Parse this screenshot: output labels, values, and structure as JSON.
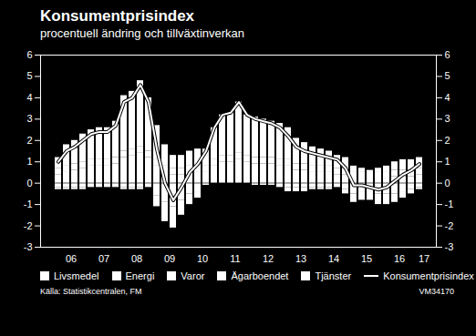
{
  "chart_data": {
    "type": "bar",
    "title": "Konsumentprisindex",
    "subtitle": "procentuell ändring och tillväxtinverkan",
    "source": "Källa: Statistikcentralen, FM",
    "annotations": [
      "VM34170"
    ],
    "stacked": true,
    "legend": "bottom",
    "grid": false,
    "ylim": [
      -3,
      6
    ],
    "yticks": [
      -3,
      -2,
      -1,
      0,
      1,
      2,
      3,
      4,
      5,
      6
    ],
    "categories": [
      null,
      "06",
      null,
      null,
      null,
      "07",
      null,
      null,
      null,
      "08",
      null,
      null,
      null,
      "09",
      null,
      null,
      null,
      "10",
      null,
      null,
      null,
      "11",
      null,
      null,
      null,
      "12",
      null,
      null,
      null,
      "13",
      null,
      null,
      null,
      "14",
      null,
      null,
      null,
      "15",
      null,
      null,
      null,
      "16",
      null,
      null,
      "17"
    ],
    "series": [
      {
        "name": "Livsmedel",
        "type": "bar",
        "color": "#ffffff",
        "values": [
          0.4,
          0.5,
          0.6,
          0.7,
          0.8,
          0.8,
          0.8,
          0.9,
          1.2,
          1.3,
          1.4,
          1.2,
          0.8,
          0.5,
          0.4,
          0.4,
          0.5,
          0.5,
          0.5,
          0.8,
          1.0,
          1.0,
          1.1,
          1.0,
          0.9,
          0.9,
          0.9,
          0.8,
          0.8,
          0.6,
          0.6,
          0.5,
          0.5,
          0.5,
          0.4,
          0.4,
          0.2,
          0.2,
          0.2,
          0.2,
          0.2,
          0.3,
          0.3,
          0.3,
          0.4
        ]
      },
      {
        "name": "Energi",
        "type": "bar",
        "color": "#ffffff",
        "values": [
          -0.2,
          -0.2,
          -0.2,
          -0.2,
          -0.1,
          -0.1,
          -0.1,
          -0.1,
          -0.2,
          -0.2,
          -0.2,
          -0.1,
          -0.6,
          -0.9,
          -1.1,
          -0.8,
          -0.5,
          -0.4,
          0.0,
          0.0,
          0.0,
          0.0,
          0.0,
          0.0,
          0.0,
          0.0,
          0.0,
          -0.1,
          -0.2,
          -0.2,
          -0.2,
          -0.2,
          -0.2,
          -0.2,
          -0.1,
          -0.3,
          -0.5,
          -0.4,
          -0.4,
          -0.5,
          -0.5,
          -0.5,
          -0.4,
          -0.3,
          -0.2
        ]
      },
      {
        "name": "Varor",
        "type": "bar",
        "color": "#ffffff",
        "values": [
          -0.1,
          -0.1,
          -0.1,
          -0.1,
          -0.1,
          -0.1,
          -0.1,
          -0.1,
          -0.1,
          -0.1,
          -0.1,
          -0.1,
          -0.5,
          -0.9,
          -1.0,
          -0.7,
          -0.5,
          -0.3,
          -0.1,
          0.0,
          0.0,
          0.0,
          0.0,
          0.0,
          -0.1,
          -0.1,
          -0.1,
          -0.1,
          -0.2,
          -0.2,
          -0.2,
          -0.1,
          -0.1,
          -0.1,
          -0.1,
          -0.2,
          -0.4,
          -0.4,
          -0.4,
          -0.5,
          -0.5,
          -0.4,
          -0.3,
          -0.2,
          -0.1
        ]
      },
      {
        "name": "Ägarboendet",
        "type": "bar",
        "color": "#ffffff",
        "values": [
          0.3,
          0.3,
          0.3,
          0.3,
          0.3,
          0.3,
          0.3,
          0.3,
          0.3,
          0.3,
          0.3,
          0.3,
          0.3,
          0.3,
          0.3,
          0.3,
          0.3,
          0.3,
          0.3,
          0.3,
          0.3,
          0.3,
          0.3,
          0.3,
          0.3,
          0.3,
          0.3,
          0.3,
          0.3,
          0.3,
          0.3,
          0.3,
          0.3,
          0.3,
          0.3,
          0.3,
          0.3,
          0.3,
          0.3,
          0.3,
          0.3,
          0.3,
          0.3,
          0.3,
          0.3
        ]
      },
      {
        "name": "Tjänster",
        "type": "bar",
        "color": "#ffffff",
        "values": [
          0.5,
          1.0,
          1.1,
          1.3,
          1.4,
          1.5,
          1.5,
          1.7,
          2.6,
          2.7,
          3.1,
          2.5,
          1.6,
          1.0,
          0.6,
          0.6,
          0.7,
          0.8,
          0.8,
          1.5,
          1.9,
          2.0,
          2.4,
          1.9,
          1.9,
          1.8,
          1.7,
          1.7,
          1.5,
          1.2,
          1.0,
          0.9,
          0.8,
          0.7,
          0.6,
          0.5,
          0.3,
          0.2,
          0.1,
          0.2,
          0.3,
          0.4,
          0.5,
          0.5,
          0.5
        ]
      },
      {
        "name": "Konsumentprisindex",
        "type": "line",
        "color": "#ffffff",
        "line_style": "solid",
        "values": [
          1.0,
          1.5,
          1.7,
          2.0,
          2.3,
          2.4,
          2.4,
          2.7,
          3.8,
          4.0,
          4.6,
          3.8,
          1.6,
          0.0,
          -0.8,
          -0.2,
          0.5,
          0.9,
          1.5,
          2.6,
          3.2,
          3.3,
          3.8,
          3.2,
          3.0,
          2.9,
          2.8,
          2.6,
          2.2,
          1.7,
          1.5,
          1.4,
          1.3,
          1.2,
          1.1,
          0.7,
          -0.1,
          -0.1,
          -0.2,
          -0.3,
          -0.2,
          0.1,
          0.4,
          0.6,
          0.9
        ]
      }
    ]
  }
}
